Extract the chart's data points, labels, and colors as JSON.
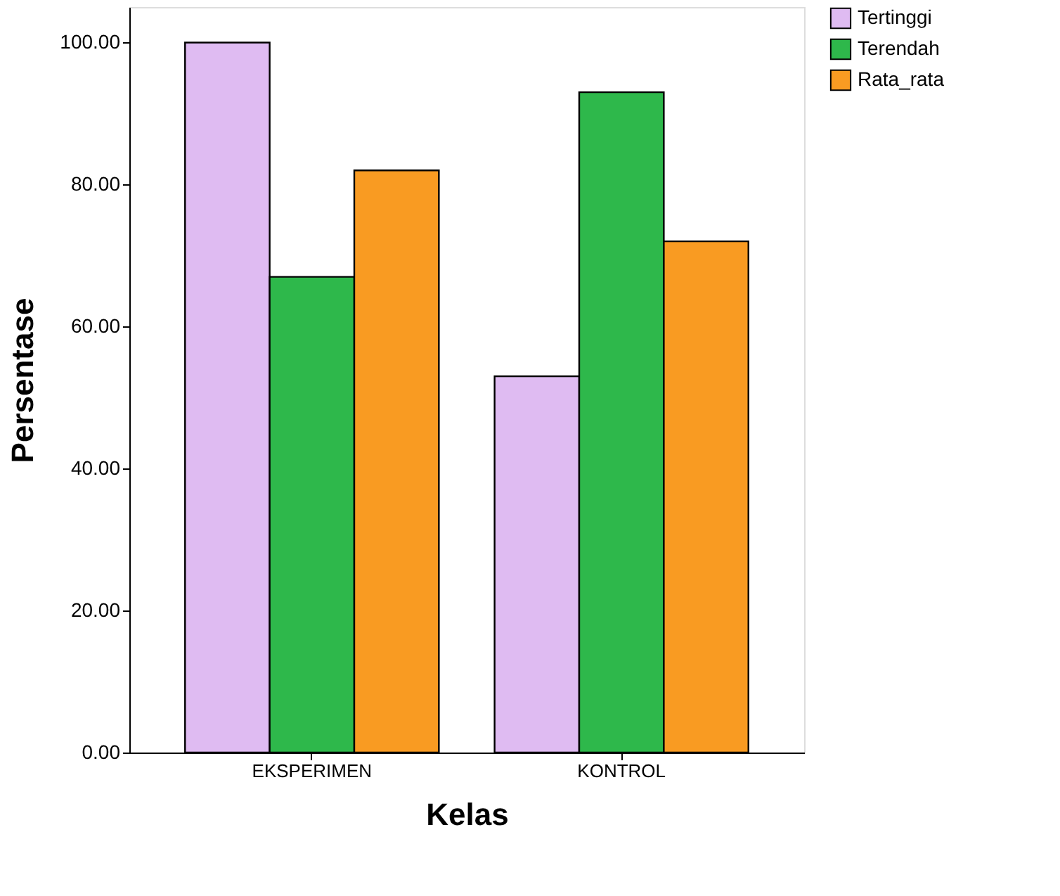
{
  "chart_data": {
    "type": "bar",
    "xlabel": "Kelas",
    "ylabel": "Persentase",
    "categories": [
      "EKSPERIMEN",
      "KONTROL"
    ],
    "series": [
      {
        "name": "Tertinggi",
        "color": "#dfbbf2",
        "values": [
          100,
          53
        ]
      },
      {
        "name": "Terendah",
        "color": "#2eb84b",
        "values": [
          67,
          93
        ]
      },
      {
        "name": "Rata_rata",
        "color": "#f99b22",
        "values": [
          82,
          72
        ]
      }
    ],
    "ylim": [
      0,
      105
    ],
    "yticks": [
      {
        "value": 0,
        "label": "0.00"
      },
      {
        "value": 20,
        "label": "20.00"
      },
      {
        "value": 40,
        "label": "40.00"
      },
      {
        "value": 60,
        "label": "60.00"
      },
      {
        "value": 80,
        "label": "80.00"
      },
      {
        "value": 100,
        "label": "100.00"
      }
    ],
    "grid": false,
    "legend": "right"
  }
}
